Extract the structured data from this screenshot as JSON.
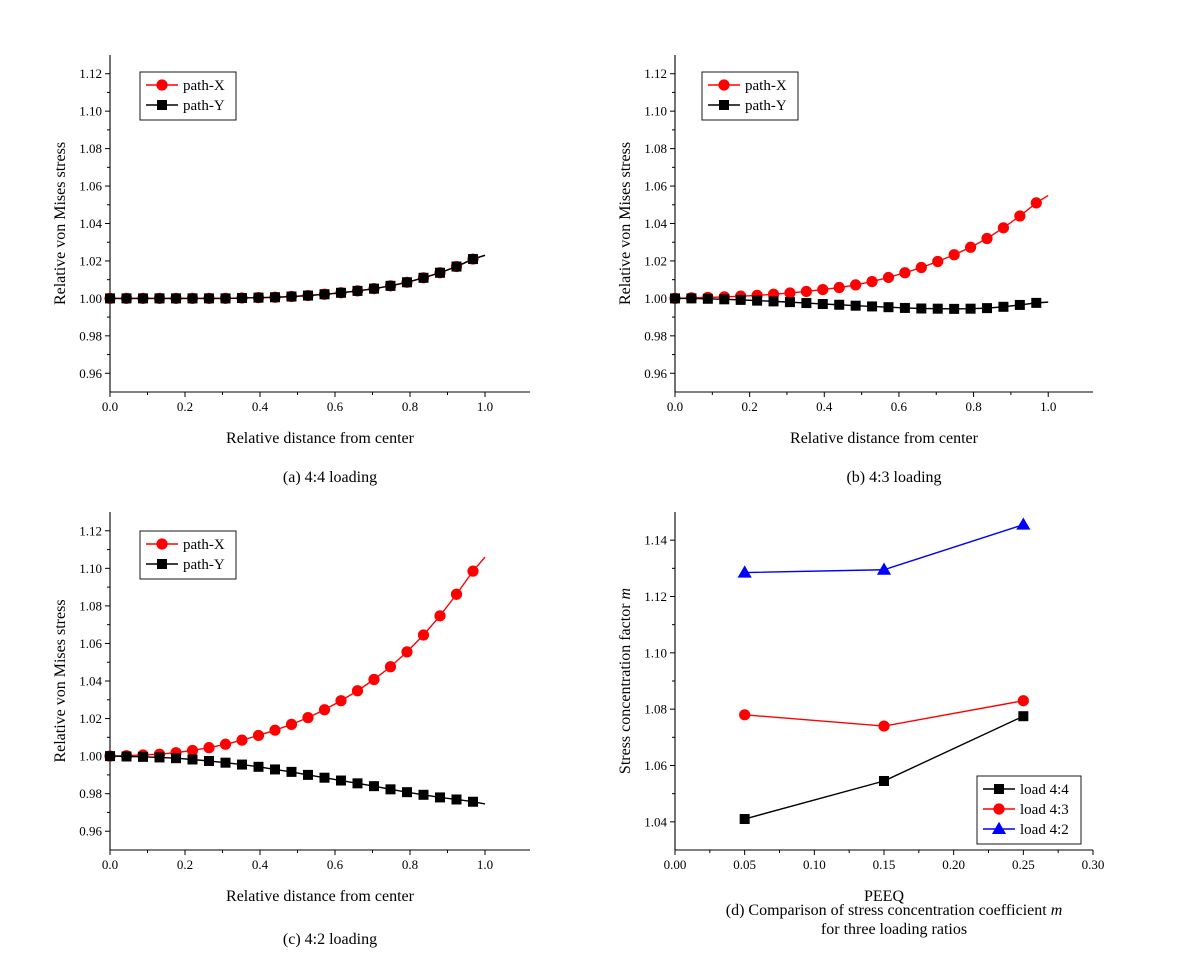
{
  "figure": {
    "panels": [
      "a",
      "b",
      "c",
      "d"
    ]
  },
  "chart_data": [
    {
      "id": "a",
      "type": "line",
      "caption": "(a) 4:4 loading",
      "xlabel": "Relative distance from center",
      "ylabel": "Relative von Mises stress",
      "xlim": [
        0,
        1.12
      ],
      "ylim": [
        0.95,
        1.13
      ],
      "xticks": [
        0,
        0.2,
        0.4,
        0.6,
        0.8,
        1.0
      ],
      "xtick_labels": [
        "0.0",
        "0.2",
        "0.4",
        "0.6",
        "0.8",
        "1.0"
      ],
      "yticks": [
        0.96,
        0.98,
        1.0,
        1.02,
        1.04,
        1.06,
        1.08,
        1.1,
        1.12
      ],
      "ytick_labels": [
        "0.96",
        "0.98",
        "1.00",
        "1.02",
        "1.04",
        "1.06",
        "1.08",
        "1.10",
        "1.12"
      ],
      "legend": "top-left",
      "series": [
        {
          "name": "path-X",
          "color": "#ff0000",
          "marker": "circle",
          "x": [
            0.0,
            0.044,
            0.088,
            0.132,
            0.176,
            0.22,
            0.264,
            0.308,
            0.352,
            0.396,
            0.44,
            0.484,
            0.528,
            0.572,
            0.616,
            0.66,
            0.704,
            0.748,
            0.792,
            0.836,
            0.88,
            0.924,
            0.968
          ],
          "y": [
            1.0,
            1.0,
            1.0,
            1.0,
            1.0,
            1.0,
            1.0,
            1.0,
            1.0002,
            1.0004,
            1.0006,
            1.001,
            1.0015,
            1.0022,
            1.003,
            1.004,
            1.0052,
            1.0067,
            1.0086,
            1.011,
            1.0137,
            1.017,
            1.021
          ],
          "line_end": [
            1.0,
            1.023
          ]
        },
        {
          "name": "path-Y",
          "color": "#000000",
          "marker": "square",
          "x": [
            0.0,
            0.044,
            0.088,
            0.132,
            0.176,
            0.22,
            0.264,
            0.308,
            0.352,
            0.396,
            0.44,
            0.484,
            0.528,
            0.572,
            0.616,
            0.66,
            0.704,
            0.748,
            0.792,
            0.836,
            0.88,
            0.924,
            0.968
          ],
          "y": [
            1.0,
            1.0,
            1.0,
            1.0,
            1.0,
            1.0,
            1.0,
            1.0,
            1.0002,
            1.0004,
            1.0006,
            1.001,
            1.0015,
            1.0022,
            1.003,
            1.004,
            1.0052,
            1.0067,
            1.0086,
            1.011,
            1.0137,
            1.017,
            1.021
          ],
          "line_end": [
            1.0,
            1.023
          ]
        }
      ]
    },
    {
      "id": "b",
      "type": "line",
      "caption": "(b) 4:3 loading",
      "xlabel": "Relative distance from center",
      "ylabel": "Relative von Mises stress",
      "xlim": [
        0,
        1.12
      ],
      "ylim": [
        0.95,
        1.13
      ],
      "xticks": [
        0,
        0.2,
        0.4,
        0.6,
        0.8,
        1.0
      ],
      "xtick_labels": [
        "0.0",
        "0.2",
        "0.4",
        "0.6",
        "0.8",
        "1.0"
      ],
      "yticks": [
        0.96,
        0.98,
        1.0,
        1.02,
        1.04,
        1.06,
        1.08,
        1.1,
        1.12
      ],
      "ytick_labels": [
        "0.96",
        "0.98",
        "1.00",
        "1.02",
        "1.04",
        "1.06",
        "1.08",
        "1.10",
        "1.12"
      ],
      "legend": "top-left",
      "series": [
        {
          "name": "path-X",
          "color": "#ff0000",
          "marker": "circle",
          "x": [
            0.0,
            0.044,
            0.088,
            0.132,
            0.176,
            0.22,
            0.264,
            0.308,
            0.352,
            0.396,
            0.44,
            0.484,
            0.528,
            0.572,
            0.616,
            0.66,
            0.704,
            0.748,
            0.792,
            0.836,
            0.88,
            0.924,
            0.968
          ],
          "y": [
            1.0,
            1.0003,
            1.0005,
            1.0008,
            1.0012,
            1.0016,
            1.0022,
            1.0029,
            1.0037,
            1.0047,
            1.0058,
            1.0072,
            1.009,
            1.0112,
            1.0137,
            1.0165,
            1.0197,
            1.0233,
            1.0273,
            1.032,
            1.0377,
            1.044,
            1.051
          ],
          "line_end": [
            1.0,
            1.055
          ]
        },
        {
          "name": "path-Y",
          "color": "#000000",
          "marker": "square",
          "x": [
            0.0,
            0.044,
            0.088,
            0.132,
            0.176,
            0.22,
            0.264,
            0.308,
            0.352,
            0.396,
            0.44,
            0.484,
            0.528,
            0.572,
            0.616,
            0.66,
            0.704,
            0.748,
            0.792,
            0.836,
            0.88,
            0.924,
            0.968
          ],
          "y": [
            1.0,
            1.0,
            0.9998,
            0.9995,
            0.9992,
            0.9988,
            0.9984,
            0.998,
            0.9975,
            0.997,
            0.9966,
            0.9961,
            0.9957,
            0.9953,
            0.9949,
            0.9946,
            0.9945,
            0.9944,
            0.9945,
            0.9948,
            0.9955,
            0.9965,
            0.9976
          ],
          "line_end": [
            1.0,
            0.998
          ]
        }
      ]
    },
    {
      "id": "c",
      "type": "line",
      "caption": "(c) 4:2 loading",
      "xlabel": "Relative distance from center",
      "ylabel": "Relative von Mises stress",
      "xlim": [
        0,
        1.12
      ],
      "ylim": [
        0.95,
        1.13
      ],
      "xticks": [
        0,
        0.2,
        0.4,
        0.6,
        0.8,
        1.0
      ],
      "xtick_labels": [
        "0.0",
        "0.2",
        "0.4",
        "0.6",
        "0.8",
        "1.0"
      ],
      "yticks": [
        0.96,
        0.98,
        1.0,
        1.02,
        1.04,
        1.06,
        1.08,
        1.1,
        1.12
      ],
      "ytick_labels": [
        "0.96",
        "0.98",
        "1.00",
        "1.02",
        "1.04",
        "1.06",
        "1.08",
        "1.10",
        "1.12"
      ],
      "legend": "top-left",
      "series": [
        {
          "name": "path-X",
          "color": "#ff0000",
          "marker": "circle",
          "x": [
            0.0,
            0.044,
            0.088,
            0.132,
            0.176,
            0.22,
            0.264,
            0.308,
            0.352,
            0.396,
            0.44,
            0.484,
            0.528,
            0.572,
            0.616,
            0.66,
            0.704,
            0.748,
            0.792,
            0.836,
            0.88,
            0.924,
            0.968
          ],
          "y": [
            1.0,
            1.0002,
            1.0006,
            1.001,
            1.0018,
            1.003,
            1.0045,
            1.0063,
            1.0085,
            1.011,
            1.0138,
            1.0169,
            1.0205,
            1.0247,
            1.0295,
            1.0348,
            1.0408,
            1.0476,
            1.0555,
            1.0645,
            1.0747,
            1.0862,
            1.0985
          ],
          "line_end": [
            1.0,
            1.106
          ]
        },
        {
          "name": "path-Y",
          "color": "#000000",
          "marker": "square",
          "x": [
            0.0,
            0.044,
            0.088,
            0.132,
            0.176,
            0.22,
            0.264,
            0.308,
            0.352,
            0.396,
            0.44,
            0.484,
            0.528,
            0.572,
            0.616,
            0.66,
            0.704,
            0.748,
            0.792,
            0.836,
            0.88,
            0.924,
            0.968
          ],
          "y": [
            1.0,
            0.9998,
            0.9996,
            0.9993,
            0.9989,
            0.9982,
            0.9974,
            0.9965,
            0.9955,
            0.9943,
            0.9929,
            0.9916,
            0.99,
            0.9885,
            0.987,
            0.9855,
            0.984,
            0.9823,
            0.9808,
            0.9794,
            0.978,
            0.9769,
            0.9757
          ],
          "line_end": [
            1.0,
            0.9745
          ]
        }
      ]
    },
    {
      "id": "d",
      "type": "line",
      "caption": "(d) Comparison of stress concentration coefficient",
      "caption_italic": "m",
      "caption_line2": "for three loading ratios",
      "xlabel": "PEEQ",
      "ylabel": "Stress concentration factor",
      "ylabel_italic": "m",
      "xlim": [
        0,
        0.3
      ],
      "ylim": [
        1.03,
        1.15
      ],
      "xticks": [
        0,
        0.05,
        0.1,
        0.15,
        0.2,
        0.25,
        0.3
      ],
      "xtick_labels": [
        "0.00",
        "0.05",
        "0.10",
        "0.15",
        "0.20",
        "0.25",
        "0.30"
      ],
      "yticks": [
        1.04,
        1.06,
        1.08,
        1.1,
        1.12,
        1.14
      ],
      "ytick_labels": [
        "1.04",
        "1.06",
        "1.08",
        "1.10",
        "1.12",
        "1.14"
      ],
      "legend": "bottom-right",
      "series": [
        {
          "name": "load 4:4",
          "color": "#000000",
          "marker": "square",
          "x": [
            0.05,
            0.15,
            0.25
          ],
          "y": [
            1.041,
            1.0545,
            1.0775
          ]
        },
        {
          "name": "load 4:3",
          "color": "#ff0000",
          "marker": "circle",
          "x": [
            0.05,
            0.15,
            0.25
          ],
          "y": [
            1.078,
            1.074,
            1.083
          ]
        },
        {
          "name": "load 4:2",
          "color": "#0000ff",
          "marker": "triangle",
          "x": [
            0.05,
            0.15,
            0.25
          ],
          "y": [
            1.1285,
            1.1295,
            1.1455
          ]
        }
      ]
    }
  ]
}
